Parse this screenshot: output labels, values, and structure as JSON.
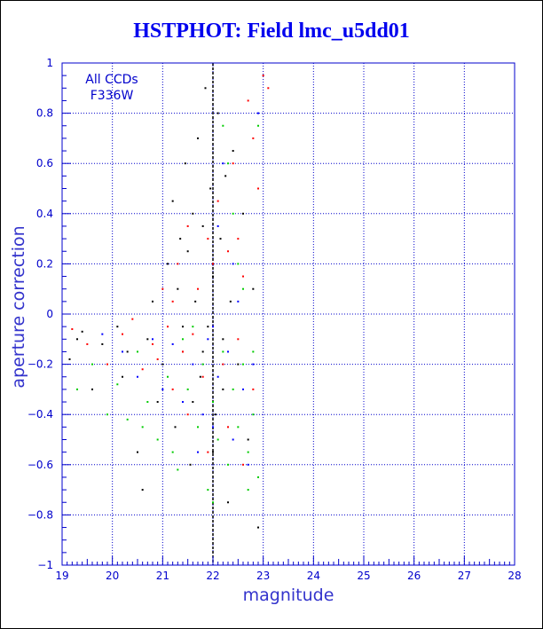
{
  "chart_data": {
    "type": "scatter",
    "title": "HSTPHOT: Field lmc_u5dd01",
    "xlabel": "magnitude",
    "ylabel": "aperture correction",
    "xlim": [
      19,
      28
    ],
    "ylim": [
      -1,
      1
    ],
    "x_ticks": [
      19,
      20,
      21,
      22,
      23,
      24,
      25,
      26,
      27,
      28
    ],
    "y_ticks": [
      -1,
      -0.8,
      -0.6,
      -0.4,
      -0.2,
      0,
      0.2,
      0.4,
      0.6,
      0.8,
      1
    ],
    "y_tick_labels": [
      "−1",
      "−0.8",
      "−0.6",
      "−0.4",
      "−0.2",
      "0",
      "0.2",
      "0.4",
      "0.6",
      "0.8",
      "1"
    ],
    "grid": true,
    "annotation": [
      "All CCDs",
      "F336W"
    ],
    "vertical_line_x": 22,
    "series": [
      {
        "color": "#000000",
        "points": [
          [
            19.15,
            -0.18
          ],
          [
            19.3,
            -0.1
          ],
          [
            19.4,
            -0.07
          ],
          [
            19.6,
            -0.3
          ],
          [
            19.8,
            -0.12
          ],
          [
            20.1,
            -0.05
          ],
          [
            20.2,
            -0.25
          ],
          [
            20.3,
            -0.15
          ],
          [
            20.5,
            -0.55
          ],
          [
            20.6,
            -0.7
          ],
          [
            20.7,
            -0.1
          ],
          [
            20.8,
            0.05
          ],
          [
            20.9,
            -0.35
          ],
          [
            21.0,
            -0.2
          ],
          [
            21.1,
            0.2
          ],
          [
            21.2,
            0.45
          ],
          [
            21.25,
            -0.45
          ],
          [
            21.3,
            0.1
          ],
          [
            21.35,
            0.3
          ],
          [
            21.4,
            -0.15
          ],
          [
            21.45,
            0.6
          ],
          [
            21.5,
            0.25
          ],
          [
            21.55,
            -0.6
          ],
          [
            21.6,
            0.4
          ],
          [
            21.65,
            0.05
          ],
          [
            21.7,
            0.7
          ],
          [
            21.75,
            -0.25
          ],
          [
            21.8,
            0.35
          ],
          [
            21.85,
            0.9
          ],
          [
            21.9,
            -0.05
          ],
          [
            21.95,
            0.5
          ],
          [
            22.0,
            0.15
          ],
          [
            22.05,
            -0.4
          ],
          [
            22.1,
            0.8
          ],
          [
            22.15,
            0.3
          ],
          [
            22.2,
            -0.3
          ],
          [
            22.25,
            0.55
          ],
          [
            22.3,
            -0.75
          ],
          [
            22.35,
            0.05
          ],
          [
            22.4,
            0.65
          ],
          [
            22.5,
            -0.2
          ],
          [
            22.6,
            0.4
          ],
          [
            22.7,
            -0.5
          ],
          [
            22.8,
            0.1
          ],
          [
            22.9,
            -0.85
          ],
          [
            21.6,
            -0.35
          ],
          [
            21.8,
            -0.15
          ],
          [
            22.0,
            -0.55
          ],
          [
            21.4,
            -0.05
          ],
          [
            22.2,
            -0.1
          ]
        ]
      },
      {
        "color": "#ff0000",
        "points": [
          [
            19.2,
            -0.06
          ],
          [
            19.5,
            -0.12
          ],
          [
            19.9,
            -0.2
          ],
          [
            20.2,
            -0.08
          ],
          [
            20.4,
            -0.02
          ],
          [
            20.6,
            -0.22
          ],
          [
            20.8,
            -0.12
          ],
          [
            21.0,
            0.1
          ],
          [
            21.1,
            -0.05
          ],
          [
            21.2,
            -0.3
          ],
          [
            21.3,
            0.2
          ],
          [
            21.4,
            -0.15
          ],
          [
            21.5,
            0.35
          ],
          [
            21.6,
            -0.08
          ],
          [
            21.7,
            0.1
          ],
          [
            21.8,
            -0.25
          ],
          [
            21.9,
            0.3
          ],
          [
            22.0,
            -0.05
          ],
          [
            22.1,
            0.45
          ],
          [
            22.2,
            -0.2
          ],
          [
            22.3,
            0.25
          ],
          [
            22.4,
            0.6
          ],
          [
            22.5,
            -0.1
          ],
          [
            22.6,
            0.15
          ],
          [
            22.7,
            0.85
          ],
          [
            22.8,
            -0.3
          ],
          [
            22.9,
            0.5
          ],
          [
            23.0,
            0.95
          ],
          [
            23.1,
            0.9
          ],
          [
            22.6,
            -0.6
          ],
          [
            22.3,
            -0.45
          ],
          [
            21.9,
            -0.55
          ],
          [
            21.5,
            -0.4
          ],
          [
            21.2,
            0.05
          ],
          [
            20.9,
            -0.18
          ],
          [
            22.0,
            0.2
          ],
          [
            22.5,
            0.3
          ],
          [
            22.8,
            0.7
          ]
        ]
      },
      {
        "color": "#00cc00",
        "points": [
          [
            19.3,
            -0.3
          ],
          [
            19.6,
            -0.2
          ],
          [
            19.9,
            -0.4
          ],
          [
            20.1,
            -0.28
          ],
          [
            20.3,
            -0.42
          ],
          [
            20.5,
            -0.15
          ],
          [
            20.7,
            -0.35
          ],
          [
            20.9,
            -0.5
          ],
          [
            21.1,
            -0.25
          ],
          [
            21.3,
            -0.62
          ],
          [
            21.5,
            -0.3
          ],
          [
            21.7,
            -0.45
          ],
          [
            21.8,
            -0.2
          ],
          [
            21.9,
            -0.7
          ],
          [
            22.0,
            -0.35
          ],
          [
            22.1,
            -0.5
          ],
          [
            22.2,
            -0.15
          ],
          [
            22.3,
            -0.6
          ],
          [
            22.4,
            -0.3
          ],
          [
            22.5,
            -0.45
          ],
          [
            22.6,
            -0.2
          ],
          [
            22.7,
            -0.55
          ],
          [
            22.8,
            -0.4
          ],
          [
            22.9,
            -0.65
          ],
          [
            22.6,
            0.1
          ],
          [
            22.4,
            0.4
          ],
          [
            22.2,
            0.75
          ],
          [
            22.3,
            0.6
          ],
          [
            22.5,
            0.2
          ],
          [
            21.4,
            -0.1
          ],
          [
            21.6,
            -0.05
          ],
          [
            22.0,
            -0.75
          ],
          [
            22.8,
            -0.15
          ],
          [
            22.9,
            0.75
          ],
          [
            22.7,
            -0.7
          ],
          [
            21.2,
            -0.55
          ],
          [
            20.6,
            -0.45
          ]
        ]
      },
      {
        "color": "#0000ff",
        "points": [
          [
            19.8,
            -0.08
          ],
          [
            20.2,
            -0.15
          ],
          [
            20.5,
            -0.25
          ],
          [
            20.8,
            -0.1
          ],
          [
            21.0,
            -0.3
          ],
          [
            21.2,
            -0.12
          ],
          [
            21.4,
            -0.35
          ],
          [
            21.6,
            -0.2
          ],
          [
            21.8,
            -0.4
          ],
          [
            21.9,
            -0.1
          ],
          [
            22.0,
            -0.45
          ],
          [
            22.1,
            -0.25
          ],
          [
            22.2,
            0.6
          ],
          [
            22.3,
            -0.15
          ],
          [
            22.4,
            -0.5
          ],
          [
            22.5,
            0.05
          ],
          [
            22.6,
            -0.3
          ],
          [
            22.7,
            -0.6
          ],
          [
            22.8,
            -0.2
          ],
          [
            22.9,
            0.8
          ],
          [
            22.1,
            0.35
          ],
          [
            22.4,
            0.2
          ],
          [
            21.7,
            -0.55
          ],
          [
            22.0,
            -0.05
          ]
        ]
      }
    ]
  }
}
